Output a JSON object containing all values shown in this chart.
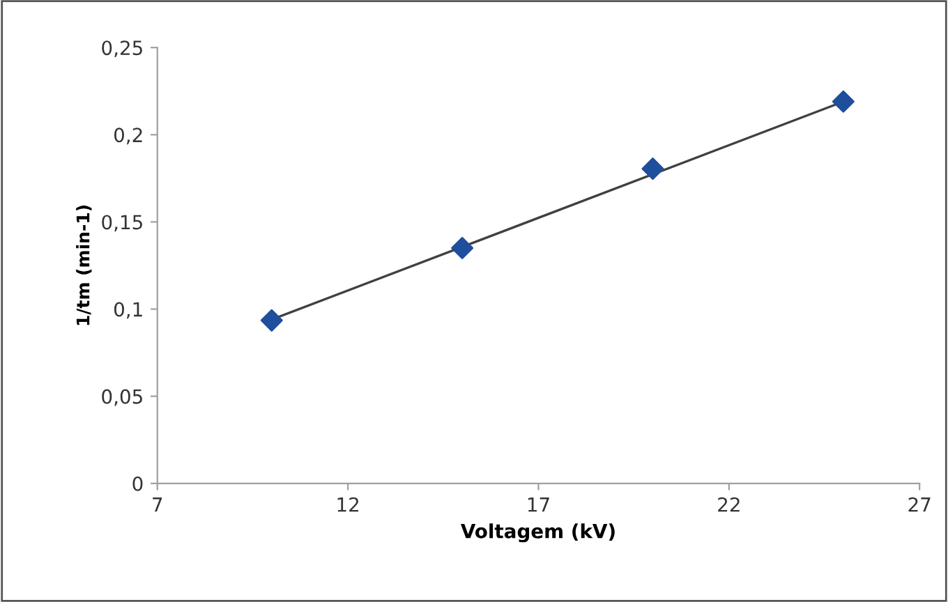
{
  "chart_data": {
    "type": "scatter",
    "xlabel": "Voltagem (kV)",
    "ylabel": "1/tm (min-1)",
    "series": [
      {
        "color": "#1f4e9c",
        "x": [
          10,
          15,
          20,
          25
        ],
        "values": [
          0.0935,
          0.135,
          0.1805,
          0.219
        ],
        "marker": "diamond"
      },
      {
        "type": "line",
        "color": "#404040",
        "x": [
          10,
          25
        ],
        "values": [
          0.094,
          0.219
        ],
        "line_style": "solid",
        "marker": "none"
      }
    ],
    "xlim": [
      7,
      27
    ],
    "xticks": [
      7,
      12,
      17,
      22,
      27
    ],
    "ylim": [
      0,
      0.25
    ],
    "yticks": [
      0,
      {
        "value": 0.05,
        "label": "0,05"
      },
      {
        "value": 0.1,
        "label": "0,1"
      },
      {
        "value": 0.15,
        "label": "0,15"
      },
      {
        "value": 0.2,
        "label": "0,2"
      },
      {
        "value": 0.25,
        "label": "0,25"
      }
    ],
    "grid": false,
    "legend": false
  }
}
